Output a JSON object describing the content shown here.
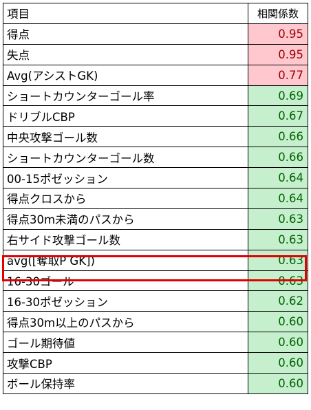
{
  "header": {
    "item": "項目",
    "value": "相関係数"
  },
  "rows": [
    {
      "label": "得点",
      "value": "0.95",
      "tone": "pink"
    },
    {
      "label": "失点",
      "value": "0.95",
      "tone": "pink"
    },
    {
      "label": "Avg(アシストGK)",
      "value": "0.77",
      "tone": "pink"
    },
    {
      "label": "ショートカウンターゴール率",
      "value": "0.69",
      "tone": "green"
    },
    {
      "label": "ドリブルCBP",
      "value": "0.67",
      "tone": "green"
    },
    {
      "label": "中央攻撃ゴール数",
      "value": "0.66",
      "tone": "green"
    },
    {
      "label": "ショートカウンターゴール数",
      "value": "0.66",
      "tone": "green"
    },
    {
      "label": "00-15ポゼッション",
      "value": "0.64",
      "tone": "green"
    },
    {
      "label": "得点クロスから",
      "value": "0.64",
      "tone": "green"
    },
    {
      "label": "得点30m未満のパスから",
      "value": "0.63",
      "tone": "green"
    },
    {
      "label": "右サイド攻撃ゴール数",
      "value": "0.63",
      "tone": "green"
    },
    {
      "label": "avg([奪取P GK])",
      "value": "0.63",
      "tone": "green",
      "highlighted": true
    },
    {
      "label": "16-30ゴール",
      "value": "0.63",
      "tone": "green"
    },
    {
      "label": "16-30ポゼッション",
      "value": "0.62",
      "tone": "green"
    },
    {
      "label": "得点30m以上のパスから",
      "value": "0.60",
      "tone": "green"
    },
    {
      "label": "ゴール期待値",
      "value": "0.60",
      "tone": "green"
    },
    {
      "label": "攻撃CBP",
      "value": "0.60",
      "tone": "green"
    },
    {
      "label": "ボール保持率",
      "value": "0.60",
      "tone": "green"
    }
  ],
  "colors": {
    "pink_fill": "#ffc7ce",
    "pink_text": "#9c0006",
    "green_fill": "#c6efce",
    "green_text": "#006100",
    "highlight_border": "#e00000"
  }
}
